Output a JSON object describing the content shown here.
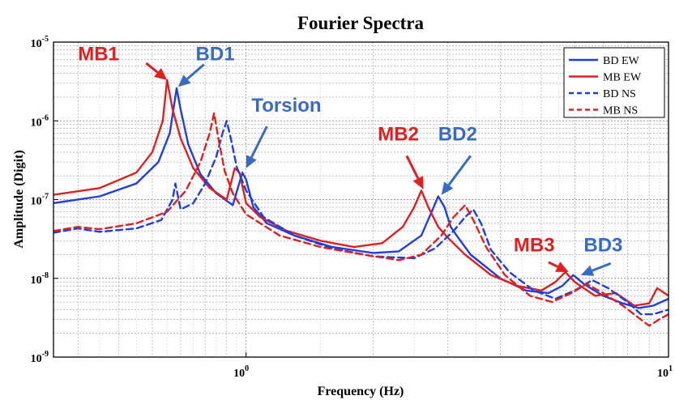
{
  "chart_data": {
    "type": "line",
    "title": "Fourier Spectra",
    "xlabel": "Frequency (Hz)",
    "ylabel": "Amplitude (Digit)",
    "x_scale": "log",
    "y_scale": "log",
    "xlim": [
      0.35,
      10
    ],
    "ylim": [
      1e-09,
      1e-05
    ],
    "grid": true,
    "legend_position": "top-right",
    "x_ticks": [
      {
        "value": 1,
        "base": "10",
        "exp": "0"
      },
      {
        "value": 10,
        "base": "10",
        "exp": "1"
      }
    ],
    "y_ticks": [
      {
        "value": 1e-09,
        "base": "10",
        "exp": "-9"
      },
      {
        "value": 1e-08,
        "base": "10",
        "exp": "-8"
      },
      {
        "value": 1e-07,
        "base": "10",
        "exp": "-7"
      },
      {
        "value": 1e-06,
        "base": "10",
        "exp": "-6"
      },
      {
        "value": 1e-05,
        "base": "10",
        "exp": "-5"
      }
    ],
    "series": [
      {
        "name": "BD EW",
        "color": "#1f3ee0",
        "dash": "solid",
        "points": [
          [
            0.35,
            9e-08
          ],
          [
            0.45,
            1.1e-07
          ],
          [
            0.55,
            1.6e-07
          ],
          [
            0.62,
            3e-07
          ],
          [
            0.66,
            7e-07
          ],
          [
            0.685,
            2.6e-06
          ],
          [
            0.7,
            1.4e-06
          ],
          [
            0.73,
            5e-07
          ],
          [
            0.78,
            2.1e-07
          ],
          [
            0.85,
            1.2e-07
          ],
          [
            0.93,
            8.5e-08
          ],
          [
            0.98,
            2.2e-07
          ],
          [
            1.0,
            1.8e-07
          ],
          [
            1.04,
            8e-08
          ],
          [
            1.12,
            5e-08
          ],
          [
            1.3,
            3.5e-08
          ],
          [
            1.6,
            2.5e-08
          ],
          [
            2.0,
            2.1e-08
          ],
          [
            2.3,
            2.2e-08
          ],
          [
            2.6,
            3.5e-08
          ],
          [
            2.75,
            7e-08
          ],
          [
            2.85,
            1.1e-07
          ],
          [
            2.95,
            8e-08
          ],
          [
            3.05,
            4.5e-08
          ],
          [
            3.15,
            3.5e-08
          ],
          [
            3.4,
            2e-08
          ],
          [
            4.0,
            1e-08
          ],
          [
            4.6,
            7e-09
          ],
          [
            5.2,
            6.5e-09
          ],
          [
            5.6,
            8e-09
          ],
          [
            5.95,
            1.1e-08
          ],
          [
            6.3,
            8.5e-09
          ],
          [
            7.0,
            6e-09
          ],
          [
            7.8,
            4.8e-09
          ],
          [
            8.5,
            4.2e-09
          ],
          [
            9.2,
            4.5e-09
          ],
          [
            10,
            5.5e-09
          ]
        ]
      },
      {
        "name": "MB EW",
        "color": "#e02020",
        "dash": "solid",
        "points": [
          [
            0.35,
            1.15e-07
          ],
          [
            0.45,
            1.4e-07
          ],
          [
            0.55,
            2.2e-07
          ],
          [
            0.6,
            4e-07
          ],
          [
            0.635,
            1e-06
          ],
          [
            0.65,
            3.3e-06
          ],
          [
            0.67,
            1.4e-06
          ],
          [
            0.7,
            6e-07
          ],
          [
            0.75,
            2.5e-07
          ],
          [
            0.82,
            1.4e-07
          ],
          [
            0.9,
            1e-07
          ],
          [
            0.94,
            2.5e-07
          ],
          [
            0.965,
            2.2e-07
          ],
          [
            1.0,
            9e-08
          ],
          [
            1.08,
            6e-08
          ],
          [
            1.25,
            4e-08
          ],
          [
            1.5,
            3e-08
          ],
          [
            1.8,
            2.5e-08
          ],
          [
            2.1,
            2.8e-08
          ],
          [
            2.35,
            4.5e-08
          ],
          [
            2.5,
            8e-08
          ],
          [
            2.6,
            1.3e-07
          ],
          [
            2.7,
            8e-08
          ],
          [
            2.85,
            4.5e-08
          ],
          [
            3.0,
            3.3e-08
          ],
          [
            3.3,
            2e-08
          ],
          [
            3.8,
            1.1e-08
          ],
          [
            4.4,
            8e-09
          ],
          [
            5.0,
            7e-09
          ],
          [
            5.4,
            9e-09
          ],
          [
            5.7,
            1.2e-08
          ],
          [
            6.0,
            9e-09
          ],
          [
            6.7,
            6e-09
          ],
          [
            7.5,
            6.5e-09
          ],
          [
            8.3,
            4.5e-09
          ],
          [
            9.0,
            4.8e-09
          ],
          [
            9.4,
            7.5e-09
          ],
          [
            10,
            6e-09
          ]
        ]
      },
      {
        "name": "BD NS",
        "color": "#1f3ee0",
        "dash": "dashed",
        "points": [
          [
            0.35,
            3.8e-08
          ],
          [
            0.4,
            4.3e-08
          ],
          [
            0.45,
            3.9e-08
          ],
          [
            0.55,
            4.3e-08
          ],
          [
            0.63,
            5.5e-08
          ],
          [
            0.67,
            1e-07
          ],
          [
            0.68,
            1.6e-07
          ],
          [
            0.7,
            7.5e-08
          ],
          [
            0.75,
            9e-08
          ],
          [
            0.8,
            1.6e-07
          ],
          [
            0.85,
            3.5e-07
          ],
          [
            0.88,
            7e-07
          ],
          [
            0.9,
            1e-06
          ],
          [
            0.92,
            6e-07
          ],
          [
            0.95,
            2.6e-07
          ],
          [
            1.0,
            1.3e-07
          ],
          [
            1.1,
            6e-08
          ],
          [
            1.3,
            3.5e-08
          ],
          [
            1.6,
            2.4e-08
          ],
          [
            2.0,
            1.9e-08
          ],
          [
            2.5,
            1.8e-08
          ],
          [
            2.8,
            2.4e-08
          ],
          [
            3.1,
            4e-08
          ],
          [
            3.3,
            6e-08
          ],
          [
            3.45,
            7.5e-08
          ],
          [
            3.6,
            5e-08
          ],
          [
            3.8,
            2.3e-08
          ],
          [
            4.2,
            1.2e-08
          ],
          [
            4.8,
            7e-09
          ],
          [
            5.4,
            5.5e-09
          ],
          [
            6.0,
            7e-09
          ],
          [
            6.6,
            9.5e-09
          ],
          [
            7.2,
            7.5e-09
          ],
          [
            8.0,
            5e-09
          ],
          [
            8.6,
            3.5e-09
          ],
          [
            9.2,
            3.5e-09
          ],
          [
            10,
            4e-09
          ]
        ]
      },
      {
        "name": "MB NS",
        "color": "#e02020",
        "dash": "dashed",
        "points": [
          [
            0.35,
            4e-08
          ],
          [
            0.4,
            4.5e-08
          ],
          [
            0.45,
            4.2e-08
          ],
          [
            0.55,
            5e-08
          ],
          [
            0.65,
            7e-08
          ],
          [
            0.72,
            1.3e-07
          ],
          [
            0.78,
            3e-07
          ],
          [
            0.82,
            7e-07
          ],
          [
            0.84,
            1.25e-06
          ],
          [
            0.86,
            6e-07
          ],
          [
            0.89,
            2.3e-07
          ],
          [
            0.93,
            1.2e-07
          ],
          [
            1.0,
            6.5e-08
          ],
          [
            1.2,
            3.5e-08
          ],
          [
            1.5,
            2.5e-08
          ],
          [
            1.9,
            2e-08
          ],
          [
            2.3,
            1.7e-08
          ],
          [
            2.6,
            2e-08
          ],
          [
            2.9,
            3.5e-08
          ],
          [
            3.1,
            6e-08
          ],
          [
            3.3,
            8.5e-08
          ],
          [
            3.45,
            5.5e-08
          ],
          [
            3.7,
            2.5e-08
          ],
          [
            4.1,
            1.1e-08
          ],
          [
            4.7,
            6e-09
          ],
          [
            5.3,
            5e-09
          ],
          [
            5.9,
            6.5e-09
          ],
          [
            6.4,
            8.5e-09
          ],
          [
            7.0,
            6.5e-09
          ],
          [
            7.8,
            4.5e-09
          ],
          [
            8.6,
            3e-09
          ],
          [
            9.0,
            2.5e-09
          ],
          [
            9.5,
            3e-09
          ],
          [
            10,
            3.5e-09
          ]
        ]
      }
    ],
    "annotations": [
      {
        "text": "MB1",
        "color": "#e02020",
        "label_at": [
          0.4,
          5.9e-06
        ],
        "arrow_from": [
          0.58,
          5.4e-06
        ],
        "arrow_to": [
          0.65,
          3.3e-06
        ]
      },
      {
        "text": "BD1",
        "color": "#3a6bc4",
        "label_at": [
          0.76,
          5.9e-06
        ],
        "arrow_from": [
          0.795,
          5.2e-06
        ],
        "arrow_to": [
          0.69,
          2.7e-06
        ]
      },
      {
        "text": "Torsion",
        "color": "#3a6bc4",
        "label_at": [
          1.03,
          1.3e-06
        ],
        "arrow_from": [
          1.12,
          8.5e-07
        ],
        "arrow_to": [
          1.0,
          2.5e-07
        ]
      },
      {
        "text": "MB2",
        "color": "#e02020",
        "label_at": [
          2.05,
          5.6e-07
        ],
        "arrow_from": [
          2.4,
          3.6e-07
        ],
        "arrow_to": [
          2.63,
          1.35e-07
        ]
      },
      {
        "text": "BD2",
        "color": "#3a6bc4",
        "label_at": [
          2.85,
          5.6e-07
        ],
        "arrow_from": [
          3.4,
          3.6e-07
        ],
        "arrow_to": [
          2.9,
          1.15e-07
        ]
      },
      {
        "text": "MB3",
        "color": "#e02020",
        "label_at": [
          4.3,
          2.2e-08
        ],
        "arrow_from": [
          5.2,
          1.6e-08
        ],
        "arrow_to": [
          5.8,
          1.2e-08
        ]
      },
      {
        "text": "BD3",
        "color": "#3a6bc4",
        "label_at": [
          6.3,
          2.2e-08
        ],
        "arrow_from": [
          7.3,
          1.55e-08
        ],
        "arrow_to": [
          6.2,
          1.1e-08
        ]
      }
    ]
  }
}
